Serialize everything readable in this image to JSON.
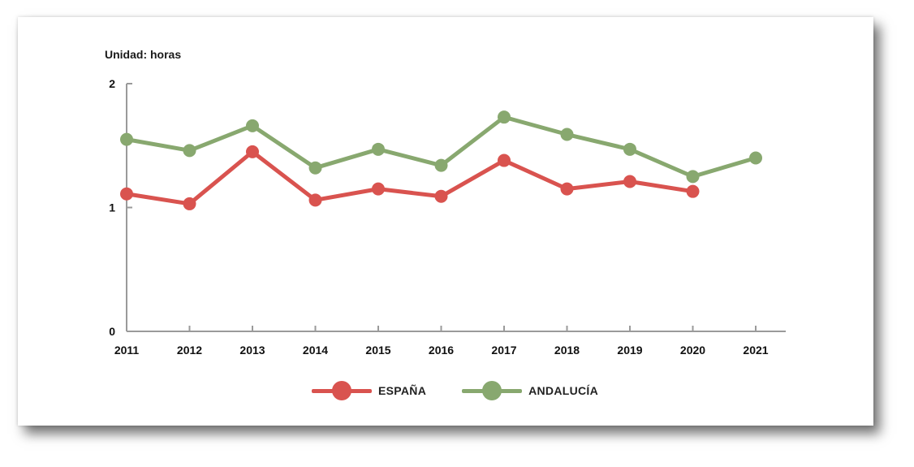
{
  "chart_data": {
    "type": "line",
    "unit_label": "Unidad: horas",
    "categories": [
      "2011",
      "2012",
      "2013",
      "2014",
      "2015",
      "2016",
      "2017",
      "2018",
      "2019",
      "2020",
      "2021"
    ],
    "yticks": [
      "0",
      "1",
      "2"
    ],
    "ylim": [
      0,
      2
    ],
    "grid": false,
    "legend_position": "bottom",
    "series": [
      {
        "name": "ESPAÑA",
        "color": "#d9534f",
        "values": [
          1.11,
          1.03,
          1.45,
          1.06,
          1.15,
          1.09,
          1.38,
          1.15,
          1.21,
          1.13,
          null
        ]
      },
      {
        "name": "ANDALUCÍA",
        "color": "#88a86f",
        "values": [
          1.55,
          1.46,
          1.66,
          1.32,
          1.47,
          1.34,
          1.73,
          1.59,
          1.47,
          1.25,
          1.4
        ]
      }
    ]
  }
}
